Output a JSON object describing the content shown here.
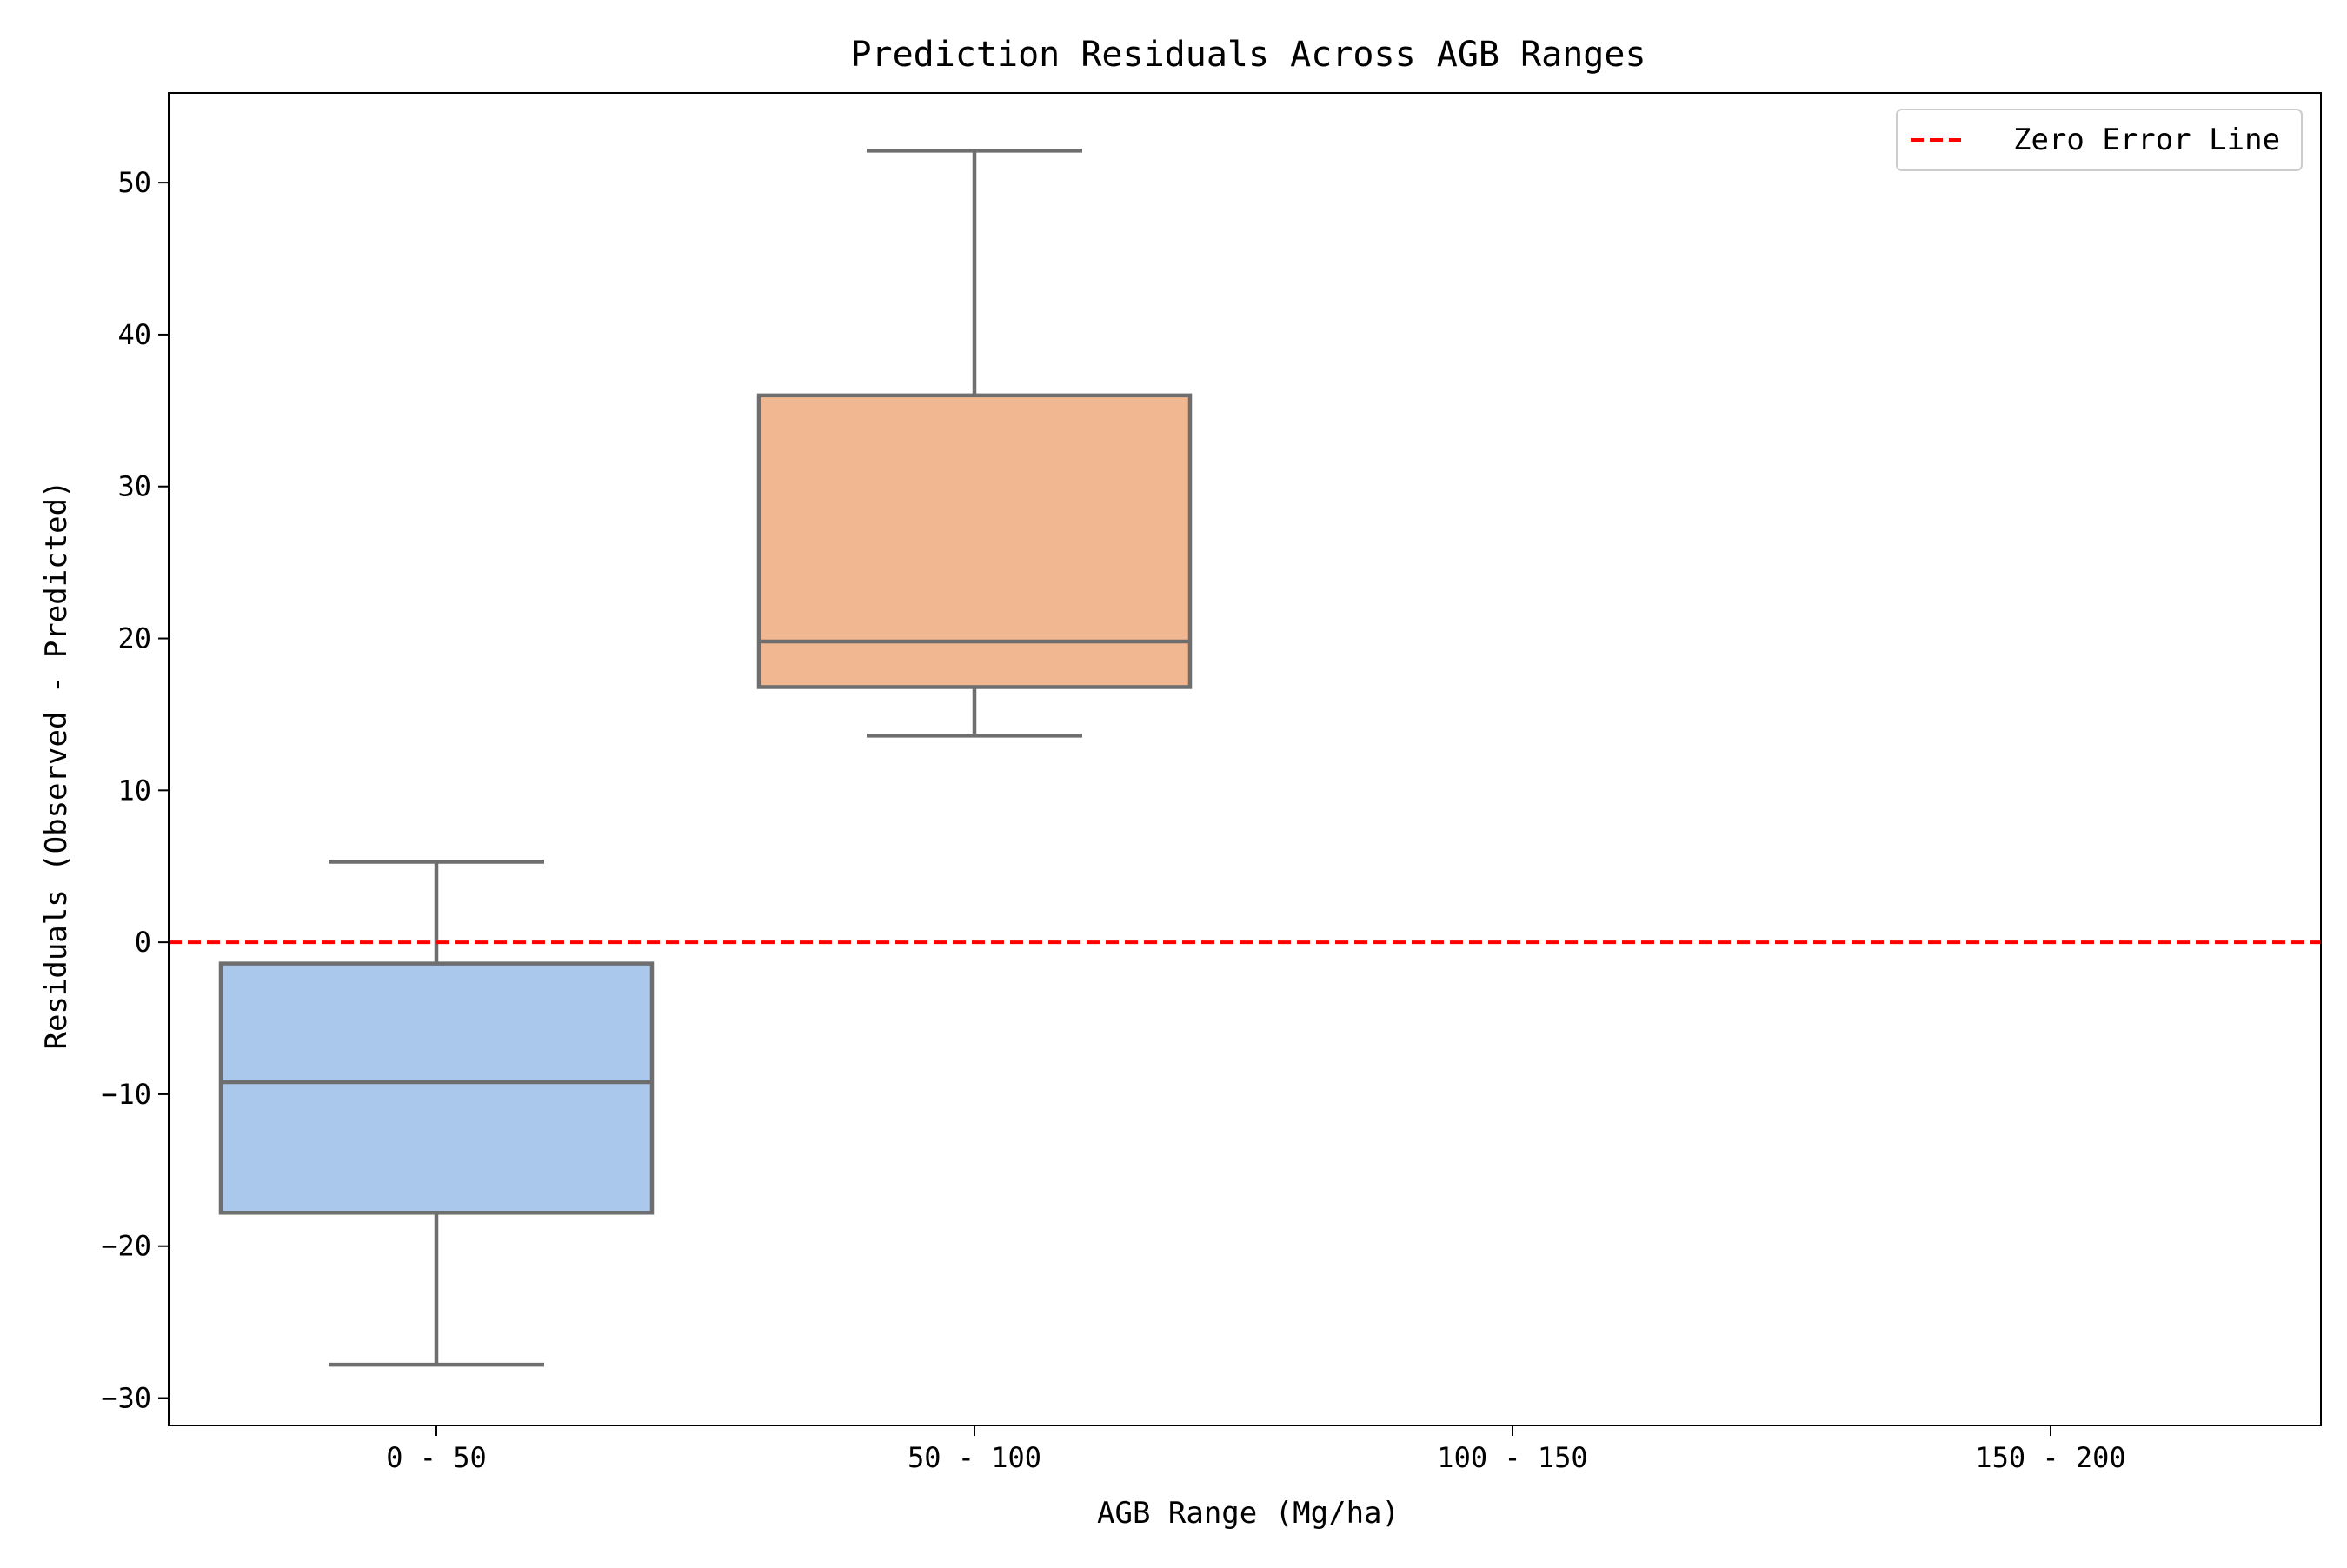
{
  "chart_data": {
    "type": "box",
    "title": "Prediction Residuals Across AGB Ranges",
    "xlabel": "AGB Range (Mg/ha)",
    "ylabel": "Residuals (Observed - Predicted)",
    "categories": [
      "0 - 50",
      "50 - 100",
      "100 - 150",
      "150 - 200"
    ],
    "ylim": [
      -31.8,
      55.9
    ],
    "yticks": [
      -30,
      -20,
      -10,
      0,
      10,
      20,
      30,
      40,
      50
    ],
    "ytick_labels": [
      "−30",
      "−20",
      "−10",
      "0",
      "10",
      "20",
      "30",
      "40",
      "50"
    ],
    "boxes": [
      {
        "category": "0 - 50",
        "whisker_low": -27.8,
        "q1": -17.8,
        "median": -9.2,
        "q3": -1.4,
        "whisker_high": 5.3,
        "color": "#a9c8ec"
      },
      {
        "category": "50 - 100",
        "whisker_low": 13.6,
        "q1": 16.8,
        "median": 19.8,
        "q3": 36.0,
        "whisker_high": 52.1,
        "color": "#f0b791"
      },
      {
        "category": "100 - 150",
        "empty": true
      },
      {
        "category": "150 - 200",
        "empty": true
      }
    ],
    "reference_line": {
      "y": 0,
      "label": "Zero Error Line",
      "color": "#ff0000",
      "style": "dashed"
    },
    "box_edge_color": "#6e6e6e",
    "legend": {
      "placement": "top-right",
      "entries": [
        "Zero Error Line"
      ]
    },
    "grid": false
  }
}
